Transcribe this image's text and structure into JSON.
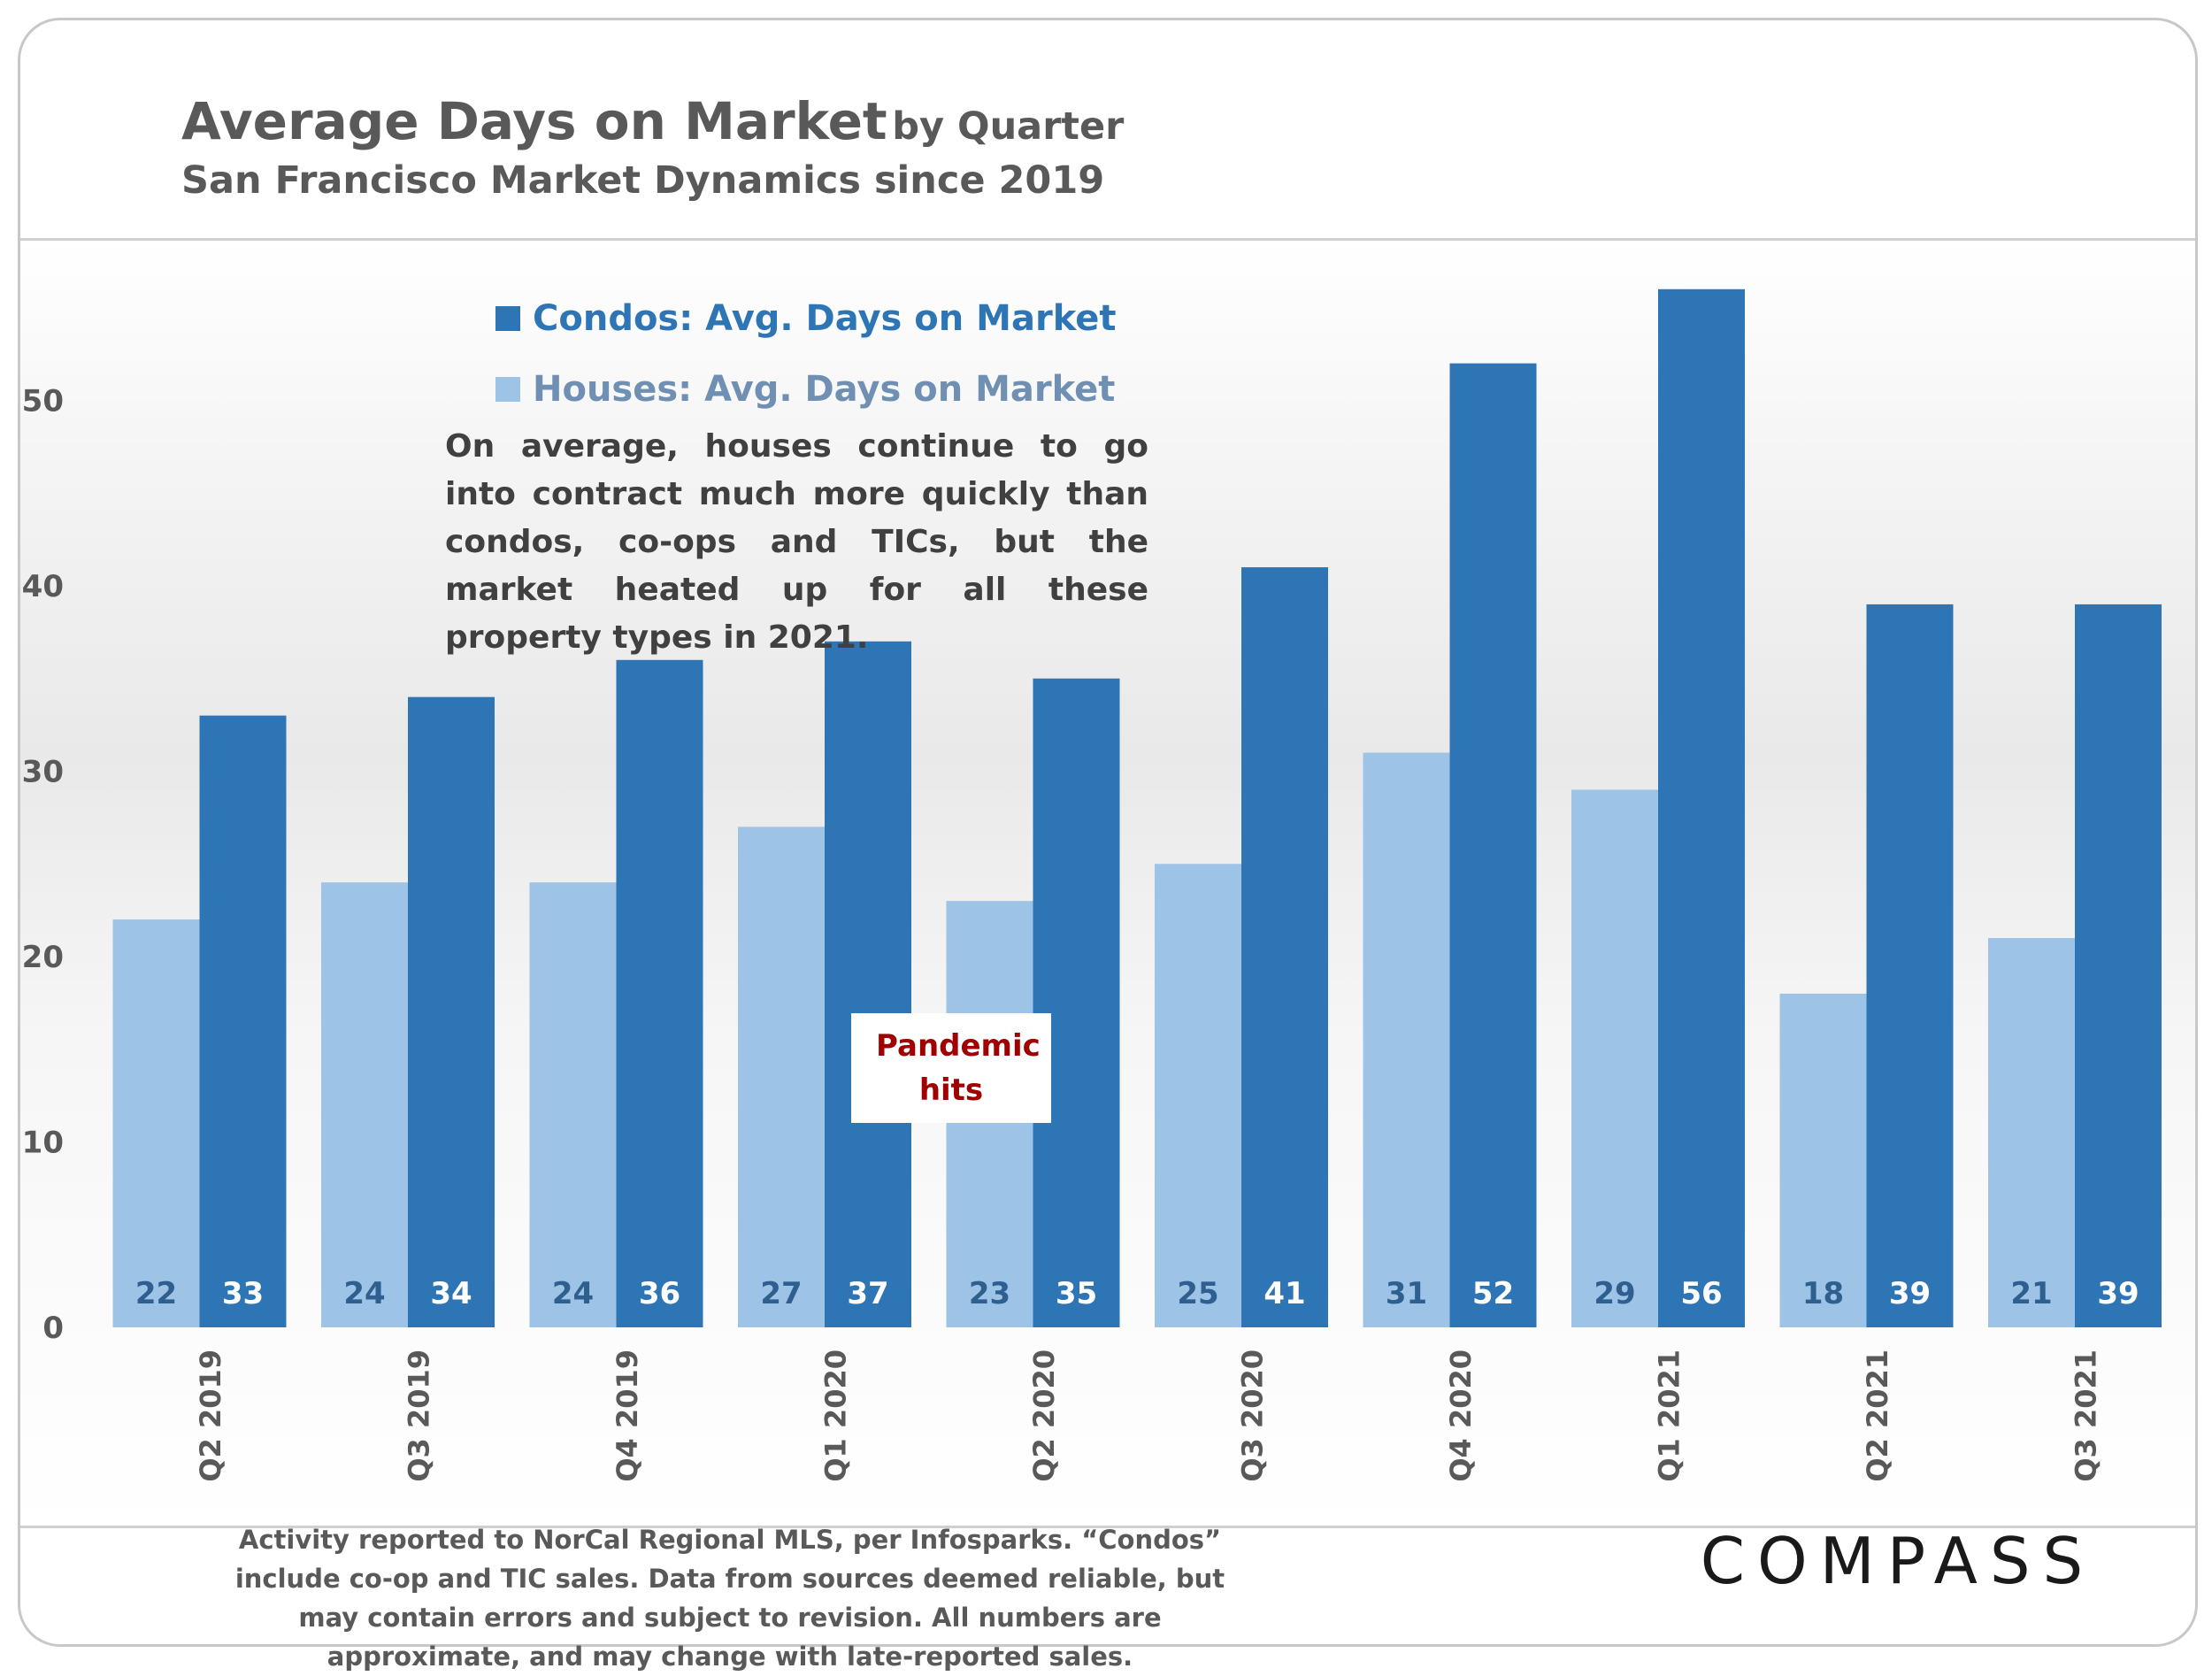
{
  "title": {
    "main": "Average Days on Market",
    "suffix": "by Quarter",
    "subtitle": "San Francisco Market Dynamics since 2019"
  },
  "note": "On average, houses continue to go into contract much more quickly than condos, co-ops and TICs, but the market heated up for all these property types in 2021.",
  "annotation": "Pandemic hits",
  "footer": {
    "text": "Activity reported to NorCal Regional MLS, per Infosparks. “Condos” include co-op and TIC sales. Data from sources deemed reliable, but may contain errors and subject to revision. All numbers are approximate, and may change with late-reported sales.",
    "logo": "COMPASS"
  },
  "colors": {
    "condos": "#2e75b6",
    "houses": "#9dc3e6",
    "text": "#595959",
    "annotation": "#a00000"
  },
  "chart_data": {
    "type": "bar",
    "categories": [
      "Q2 2019",
      "Q3 2019",
      "Q4 2019",
      "Q1 2020",
      "Q2 2020",
      "Q3 2020",
      "Q4 2020",
      "Q1 2021",
      "Q2 2021",
      "Q3 2021"
    ],
    "series": [
      {
        "name": "Houses: Avg. Days on Market",
        "values": [
          22,
          24,
          24,
          27,
          23,
          25,
          31,
          29,
          18,
          21
        ],
        "color": "#9dc3e6"
      },
      {
        "name": "Condos: Avg. Days on Market",
        "values": [
          33,
          34,
          36,
          37,
          35,
          41,
          52,
          56,
          39,
          39
        ],
        "color": "#2e75b6"
      }
    ],
    "yticks": [
      0,
      10,
      20,
      30,
      40,
      50
    ],
    "ylim": [
      0,
      56
    ],
    "data_labels": true,
    "legend_position": "top-left",
    "grid": false,
    "xlabel": "",
    "ylabel": ""
  }
}
